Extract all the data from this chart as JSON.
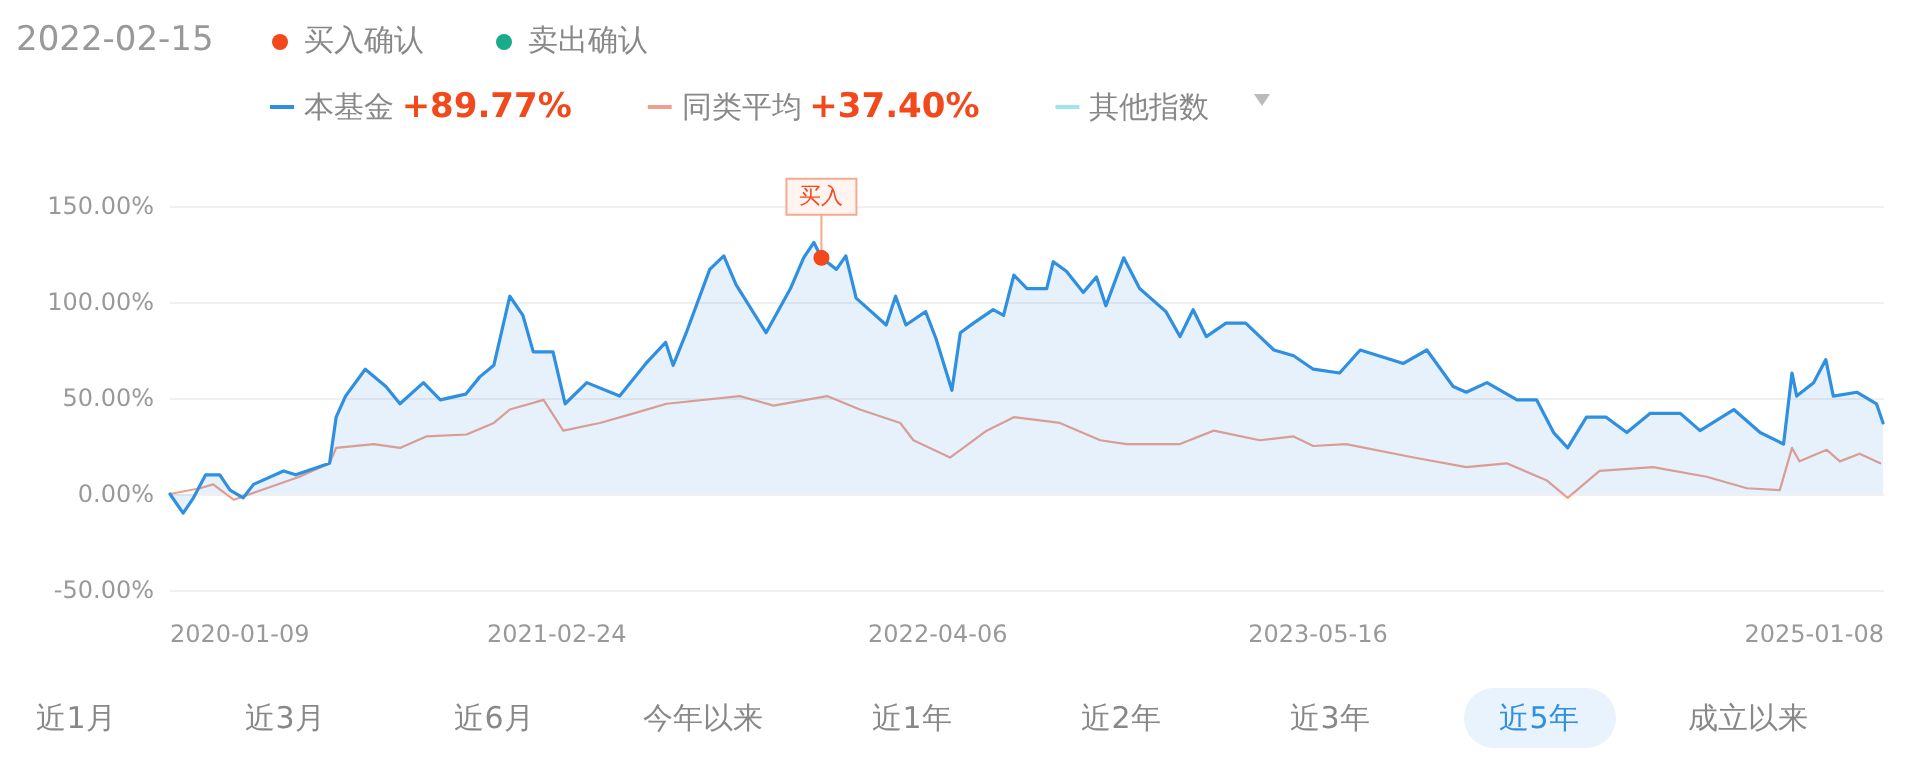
{
  "chart_data": {
    "type": "line",
    "annotations": [
      "2022-02-15",
      "买入确认",
      "卖出确认",
      "+89.77%",
      "+37.40%",
      "近1月",
      "近3月",
      "近6月",
      "今年以来",
      "近1年",
      "近2年",
      "近3年",
      "近5年",
      "成立以来",
      {
        "text": "买入",
        "x": "2021-12-03",
        "y": 123
      }
    ],
    "xlim": [
      "2020-01-09",
      "2025-01-08"
    ],
    "xticks": [
      "2020-01-09",
      "2021-02-24",
      "2022-04-06",
      "2023-05-16",
      "2025-01-08"
    ],
    "ylim": [
      -50,
      150
    ],
    "yticks": [
      {
        "value": -50,
        "label": "-50.00%"
      },
      {
        "value": 0,
        "label": "0.00%"
      },
      {
        "value": 50,
        "label": "50.00%"
      },
      {
        "value": 100,
        "label": "100.00%"
      },
      {
        "value": 150,
        "label": "150.00%"
      }
    ],
    "grid": "y",
    "legend": "top",
    "marker": "none",
    "line_style": "solid",
    "series": [
      {
        "name": "本基金",
        "type": "area",
        "color": "#2f8fe0",
        "x": [
          "2020-01-09",
          "2020-01-23",
          "2020-02-03",
          "2020-02-16",
          "2020-03-02",
          "2020-03-13",
          "2020-03-27",
          "2020-04-07",
          "2020-05-09",
          "2020-05-22",
          "2020-06-27",
          "2020-07-04",
          "2020-07-14",
          "2020-08-04",
          "2020-08-26",
          "2020-09-10",
          "2020-10-05",
          "2020-10-23",
          "2020-11-19",
          "2020-12-04",
          "2020-12-19",
          "2021-01-05",
          "2021-01-19",
          "2021-01-30",
          "2021-02-20",
          "2021-03-05",
          "2021-03-28",
          "2021-05-02",
          "2021-05-30",
          "2021-06-20",
          "2021-06-28",
          "2021-07-12",
          "2021-08-06",
          "2021-08-21",
          "2021-09-03",
          "2021-10-05",
          "2021-10-31",
          "2021-11-14",
          "2021-11-25",
          "2021-12-03",
          "2021-12-19",
          "2021-12-29",
          "2022-01-09",
          "2022-02-10",
          "2022-02-20",
          "2022-03-03",
          "2022-03-24",
          "2022-04-04",
          "2022-04-21",
          "2022-04-30",
          "2022-05-14",
          "2022-06-04",
          "2022-06-15",
          "2022-06-26",
          "2022-07-10",
          "2022-07-31",
          "2022-08-07",
          "2022-08-21",
          "2022-09-08",
          "2022-09-22",
          "2022-10-02",
          "2022-10-21",
          "2022-11-07",
          "2022-12-05",
          "2022-12-20",
          "2023-01-03",
          "2023-01-17",
          "2023-02-07",
          "2023-02-28",
          "2023-03-30",
          "2023-04-20",
          "2023-05-11",
          "2023-06-08",
          "2023-06-30",
          "2023-08-15",
          "2023-09-09",
          "2023-10-07",
          "2023-10-21",
          "2023-11-12",
          "2023-12-14",
          "2024-01-04",
          "2024-01-22",
          "2024-02-06",
          "2024-02-26",
          "2024-03-18",
          "2024-04-09",
          "2024-05-04",
          "2024-06-05",
          "2024-06-26",
          "2024-08-01",
          "2024-08-29",
          "2024-09-23",
          "2024-10-02",
          "2024-10-07",
          "2024-10-25",
          "2024-11-07",
          "2024-11-15",
          "2024-12-10",
          "2024-12-31",
          "2025-01-07"
        ],
        "values": [
          0,
          -10,
          -2,
          10,
          10,
          2,
          -2,
          5,
          12,
          10,
          16,
          40,
          51,
          65,
          56,
          47,
          58,
          49,
          52,
          61,
          67,
          103,
          93,
          74,
          74,
          47,
          58,
          51,
          68,
          79,
          67,
          84,
          117,
          124,
          109,
          84,
          107,
          123,
          131,
          123,
          117,
          124,
          102,
          88,
          103,
          88,
          95,
          81,
          54,
          84,
          89,
          96,
          93,
          114,
          107,
          107,
          121,
          116,
          105,
          113,
          98,
          123,
          107,
          95,
          82,
          96,
          82,
          89,
          89,
          75,
          72,
          65,
          63,
          75,
          68,
          75,
          56,
          53,
          58,
          49,
          49,
          32,
          24,
          40,
          40,
          32,
          42,
          42,
          33,
          44,
          32,
          26,
          63,
          51,
          58,
          70,
          51,
          53,
          47,
          37
        ]
      },
      {
        "name": "同类平均",
        "color": "#f0a08a",
        "x": [
          "2020-01-09",
          "2020-02-10",
          "2020-02-24",
          "2020-03-17",
          "2020-04-21",
          "2020-05-26",
          "2020-06-27",
          "2020-07-04",
          "2020-08-13",
          "2020-09-10",
          "2020-10-08",
          "2020-11-20",
          "2020-12-19",
          "2021-01-05",
          "2021-02-10",
          "2021-03-03",
          "2021-04-11",
          "2021-05-17",
          "2021-06-21",
          "2021-09-07",
          "2021-10-13",
          "2021-12-09",
          "2022-01-13",
          "2022-02-25",
          "2022-03-11",
          "2022-04-19",
          "2022-05-28",
          "2022-06-26",
          "2022-08-14",
          "2022-09-26",
          "2022-10-24",
          "2022-12-20",
          "2023-01-25",
          "2023-03-15",
          "2023-04-20",
          "2023-05-11",
          "2023-06-15",
          "2023-08-26",
          "2023-10-21",
          "2023-12-03",
          "2024-01-15",
          "2024-02-06",
          "2024-03-11",
          "2024-05-07",
          "2024-07-03",
          "2024-08-15",
          "2024-09-19",
          "2024-10-02",
          "2024-10-10",
          "2024-11-08",
          "2024-11-22",
          "2024-12-13",
          "2025-01-04"
        ],
        "values": [
          0,
          3,
          5,
          -3,
          3,
          9,
          16,
          24,
          26,
          24,
          30,
          31,
          37,
          44,
          49,
          33,
          37,
          42,
          47,
          51,
          46,
          51,
          44,
          37,
          28,
          19,
          33,
          40,
          37,
          28,
          26,
          26,
          33,
          28,
          30,
          25,
          26,
          19,
          14,
          16,
          7,
          -2,
          12,
          14,
          9,
          3,
          2,
          24,
          17,
          23,
          17,
          21,
          16
        ]
      },
      {
        "name": "其他指数",
        "color": "#a0e4ec"
      }
    ]
  }
}
